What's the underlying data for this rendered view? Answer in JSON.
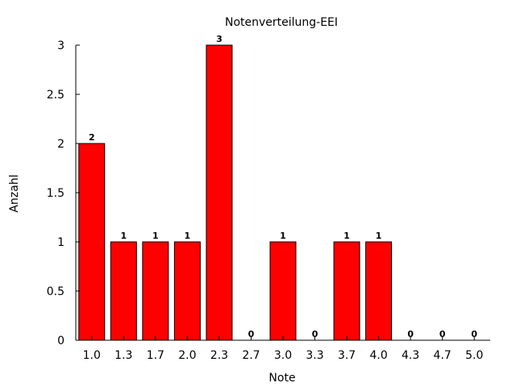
{
  "chart_data": {
    "type": "bar",
    "title": "Notenverteilung-EEI",
    "xlabel": "Note",
    "ylabel": "Anzahl",
    "categories": [
      "1.0",
      "1.3",
      "1.7",
      "2.0",
      "2.3",
      "2.7",
      "3.0",
      "3.3",
      "3.7",
      "4.0",
      "4.3",
      "4.7",
      "5.0"
    ],
    "values": [
      2,
      1,
      1,
      1,
      3,
      0,
      1,
      0,
      1,
      1,
      0,
      0,
      0
    ],
    "data_labels": [
      "2",
      "1",
      "1",
      "1",
      "3",
      "0",
      "1",
      "0",
      "1",
      "1",
      "0",
      "0",
      "0"
    ],
    "ylim": [
      0,
      3
    ],
    "yticks": [
      "0",
      "0.5",
      "1",
      "1.5",
      "2",
      "2.5",
      "3"
    ],
    "bar_color": "#ff0000",
    "grid": false,
    "legend": "none"
  }
}
